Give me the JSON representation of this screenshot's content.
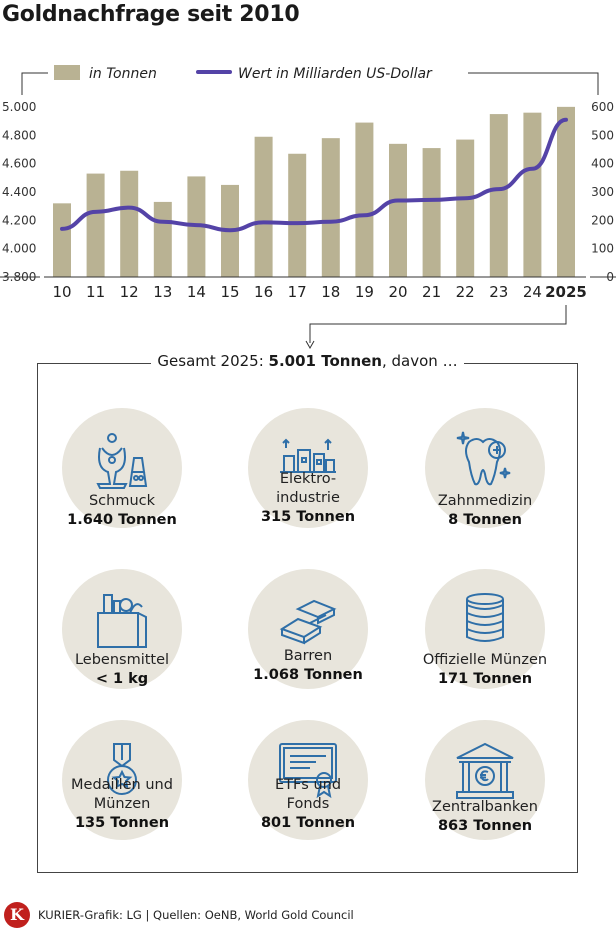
{
  "title": "Goldnachfrage seit 2010",
  "chart_data": {
    "type": "bar+line",
    "categories": [
      "10",
      "11",
      "12",
      "13",
      "14",
      "15",
      "16",
      "17",
      "18",
      "19",
      "20",
      "21",
      "22",
      "23",
      "24",
      "2025"
    ],
    "series": [
      {
        "name": "in Tonnen",
        "type": "bar",
        "axis": "left",
        "color": "#b9b293",
        "values": [
          4320,
          4530,
          4550,
          4330,
          4510,
          4450,
          4790,
          4670,
          4780,
          4890,
          4740,
          4710,
          4770,
          4950,
          4960,
          5001
        ]
      },
      {
        "name": "Wert in Milliarden US-Dollar",
        "type": "line",
        "axis": "right",
        "color": "#5443a7",
        "values": [
          170,
          230,
          245,
          195,
          183,
          165,
          193,
          190,
          195,
          218,
          270,
          272,
          278,
          310,
          382,
          555
        ]
      }
    ],
    "y_left": {
      "ticks": [
        "5.000",
        "4.800",
        "4.600",
        "4.400",
        "4.200",
        "4.000",
        "3.800"
      ],
      "range": [
        3800,
        5000
      ]
    },
    "y_right": {
      "ticks": [
        "600",
        "500",
        "400",
        "300",
        "200",
        "100",
        "0"
      ],
      "range": [
        0,
        600
      ]
    },
    "highlight_category": "2025",
    "grid": false,
    "legend": "top"
  },
  "breakdown": {
    "heading_prefix": "Gesamt 2025: ",
    "heading_bold": "5.001 Tonnen",
    "heading_suffix": ", davon …",
    "items": [
      {
        "label": "Schmuck",
        "value": "1.640 Tonnen",
        "icon": "jewelry-icon"
      },
      {
        "label": "Elektro-",
        "label2": "industrie",
        "value": "315 Tonnen",
        "icon": "factory-icon"
      },
      {
        "label": "Zahnmedizin",
        "value": "8 Tonnen",
        "icon": "tooth-icon"
      },
      {
        "label": "Lebensmittel",
        "value": "< 1 kg",
        "icon": "grocery-bag-icon"
      },
      {
        "label": "Barren",
        "value": "1.068 Tonnen",
        "icon": "gold-bars-icon"
      },
      {
        "label": "Offizielle Münzen",
        "value": "171 Tonnen",
        "icon": "coin-stack-icon"
      },
      {
        "label": "Medaillen und",
        "label2": "Münzen",
        "value": "135 Tonnen",
        "icon": "medal-icon"
      },
      {
        "label": "ETFs und",
        "label2": "Fonds",
        "value": "801 Tonnen",
        "icon": "certificate-icon"
      },
      {
        "label": "Zentralbanken",
        "value": "863  Tonnen",
        "icon": "bank-icon"
      }
    ]
  },
  "footer": {
    "logo_letter": "K",
    "credit": "KURIER-Grafik: LG | Quellen: OeNB, World Gold Council"
  }
}
